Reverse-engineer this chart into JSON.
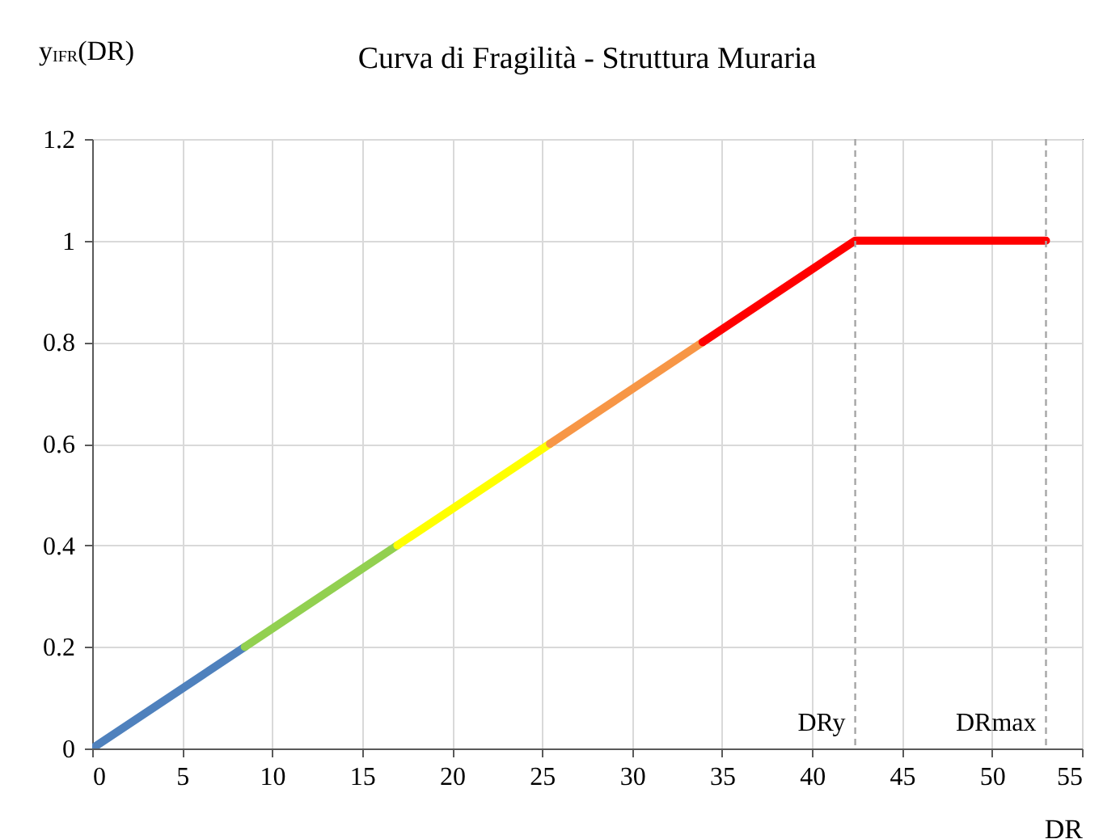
{
  "chart_data": {
    "type": "line",
    "title": "Curva di Fragilità  - Struttura Muraria",
    "xlabel": "DR",
    "ylabel": "y$_{IFR}$(DR)",
    "xlim": [
      0,
      55
    ],
    "xticks": [
      0,
      5,
      10,
      15,
      20,
      25,
      30,
      35,
      40,
      45,
      50,
      55
    ],
    "ylim": [
      0,
      1.2
    ],
    "yticks": [
      {
        "value": 0,
        "label": "0"
      },
      0.2,
      0.4,
      0.6,
      0.8,
      {
        "value": 1,
        "label": "1"
      },
      1.2
    ],
    "grid": true,
    "line_style": "solid",
    "marker": "none",
    "series": [
      {
        "color": "#4f81bd",
        "x": [
          0,
          8.48
        ],
        "values": [
          0,
          0.2
        ]
      },
      {
        "color": "#92d050",
        "x": [
          8.48,
          16.96
        ],
        "values": [
          0.2,
          0.4
        ]
      },
      {
        "color": "#ffff00",
        "x": [
          16.96,
          25.44
        ],
        "values": [
          0.4,
          0.6
        ]
      },
      {
        "color": "#f79646",
        "x": [
          25.44,
          33.92
        ],
        "values": [
          0.6,
          0.8
        ]
      },
      {
        "color": "#ff0000",
        "x": [
          33.92,
          42.4,
          53
        ],
        "values": [
          0.8,
          1,
          1
        ]
      }
    ],
    "ref_lines": [
      {
        "axis": "x",
        "value": 42.4,
        "label": "DRy",
        "color": "#a6a6a6",
        "line_style": "dashed"
      },
      {
        "axis": "x",
        "value": 53,
        "label": "DRmax",
        "color": "#a6a6a6",
        "line_style": "dashed"
      }
    ]
  }
}
